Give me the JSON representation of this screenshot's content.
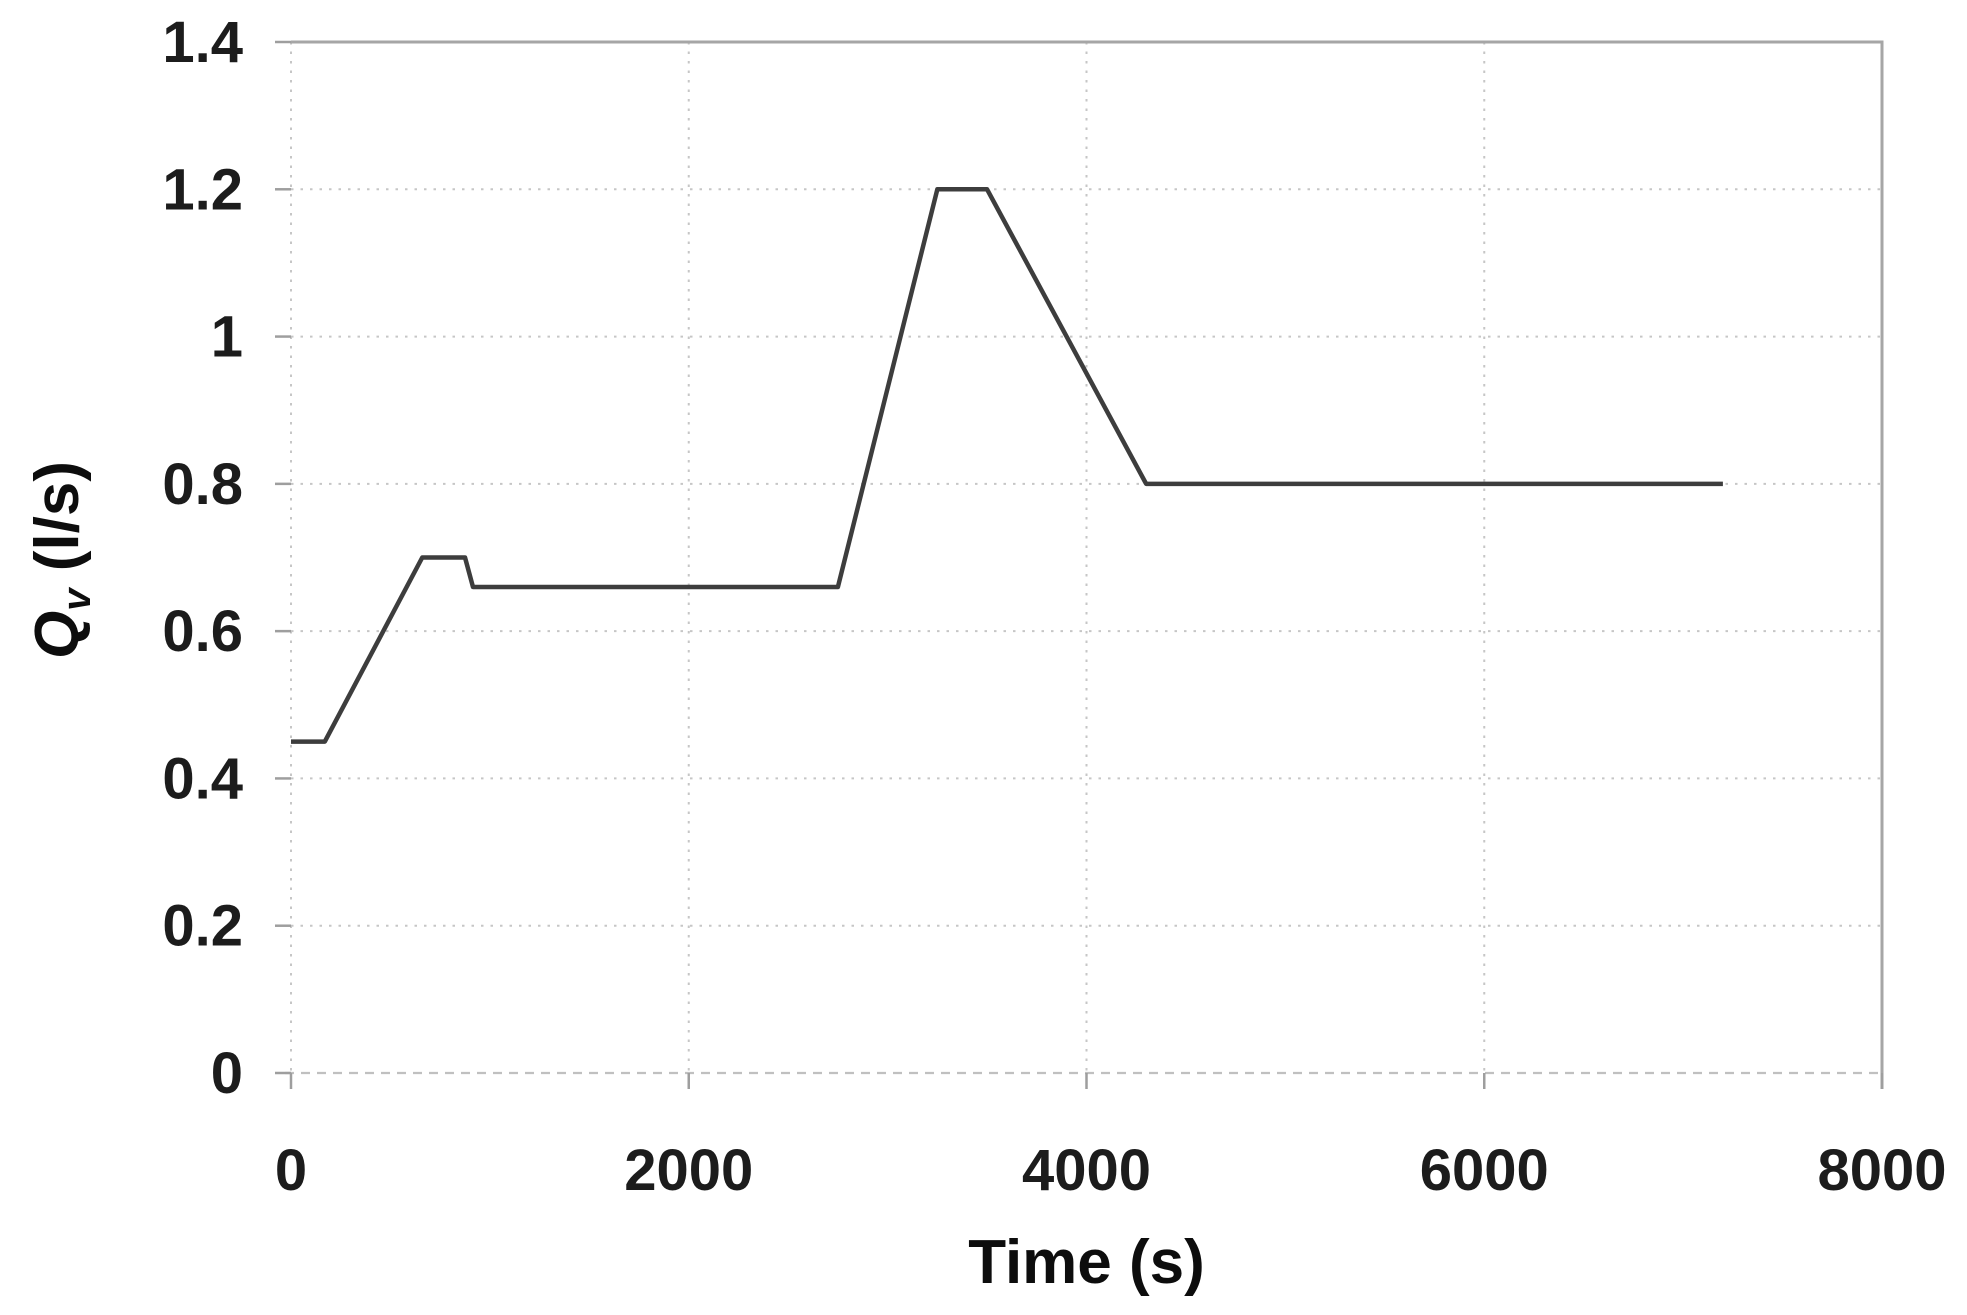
{
  "figure": {
    "background": "#ffffff",
    "description": "Line chart of volumetric flow rate Qv versus time"
  },
  "chart_data": {
    "type": "line",
    "title": "",
    "xlabel": "Time (s)",
    "ylabel_parts": {
      "symbol": "Q",
      "subscript": "v",
      "units": " (l/s)"
    },
    "xlim": [
      0,
      8000
    ],
    "ylim": [
      0,
      1.4
    ],
    "x_ticks": [
      {
        "value": 0,
        "label": "0"
      },
      {
        "value": 2000,
        "label": "2000"
      },
      {
        "value": 4000,
        "label": "4000"
      },
      {
        "value": 6000,
        "label": "6000"
      },
      {
        "value": 8000,
        "label": "8000"
      }
    ],
    "y_ticks": [
      {
        "value": 0,
        "label": "0"
      },
      {
        "value": 0.2,
        "label": "0.2"
      },
      {
        "value": 0.4,
        "label": "0.4"
      },
      {
        "value": 0.6,
        "label": "0.6"
      },
      {
        "value": 0.8,
        "label": "0.8"
      },
      {
        "value": 1,
        "label": "1"
      },
      {
        "value": 1.2,
        "label": "1.2"
      },
      {
        "value": 1.4,
        "label": "1.4"
      }
    ],
    "grid": {
      "on": true,
      "style": "dotted",
      "color": "#c6c6c6"
    },
    "border_color": "#a6a6a6",
    "tick_color": "#9e9e9e",
    "text_color": "#1c1c1c",
    "legend_position": "none",
    "series": [
      {
        "name": "Qv",
        "color": "#3d3d3d",
        "points": [
          [
            0,
            0.45
          ],
          [
            170,
            0.45
          ],
          [
            660,
            0.7
          ],
          [
            875,
            0.7
          ],
          [
            915,
            0.66
          ],
          [
            2750,
            0.66
          ],
          [
            3250,
            1.2
          ],
          [
            3500,
            1.2
          ],
          [
            4300,
            0.8
          ],
          [
            7200,
            0.8
          ]
        ]
      }
    ]
  }
}
